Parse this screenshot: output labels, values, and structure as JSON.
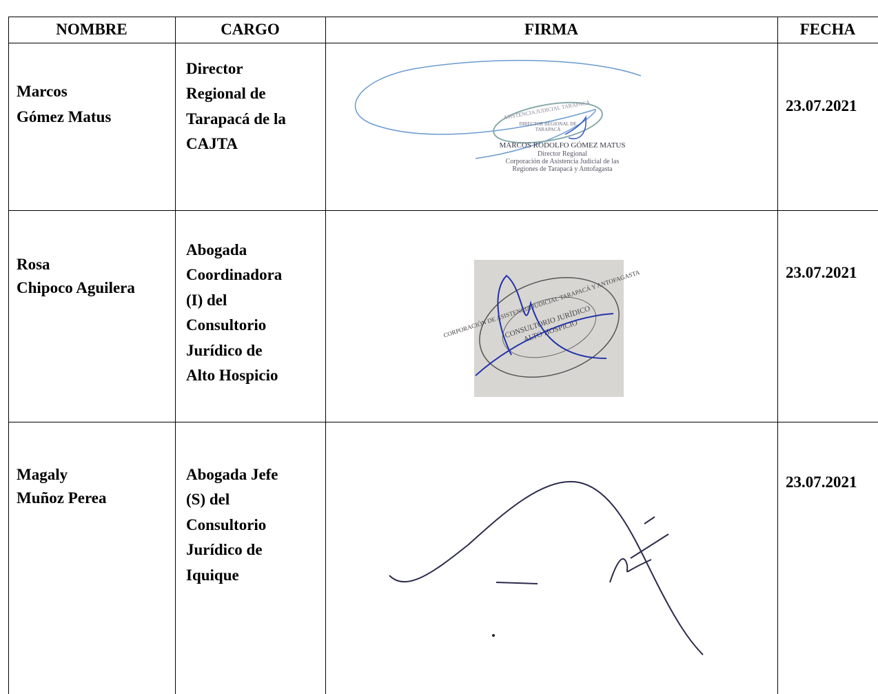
{
  "table": {
    "header": [
      "NOMBRE",
      "CARGO",
      "FIRMA",
      "FECHA"
    ],
    "rows": [
      {
        "nombre": [
          "Marcos",
          "Gómez Matus"
        ],
        "cargo": [
          "Director",
          "Regional de",
          "Tarapacá de la",
          "CAJTA"
        ],
        "fecha": "23.07.2021",
        "firma": {
          "stamp": [
            "ASISTENCIA JUDICIAL TARAPACÁ",
            "DIRECTOR REGIONAL DE",
            "TARAPACÁ"
          ],
          "caption": [
            "MARCOS RODOLFO GÓMEZ MATUS",
            "Director Regional",
            "Corporación de Asistencia Judicial de las",
            "Regiones de Tarapacá y Antofagasta"
          ]
        }
      },
      {
        "nombre": [
          "Rosa",
          "Chipoco Aguilera"
        ],
        "cargo": [
          "Abogada",
          "Coordinadora",
          "(I) del",
          "Consultorio",
          "Jurídico de",
          "Alto Hospicio"
        ],
        "fecha": "23.07.2021",
        "firma": {
          "stamp": [
            "CORPORACIÓN DE ASISTENCIA JUDICIAL TARAPACÁ Y ANTOFAGASTA",
            "CONSULTORIO JURÍDICO",
            "ALTO HOSPICIO"
          ]
        }
      },
      {
        "nombre": [
          "Magaly",
          "Muñoz Perea"
        ],
        "cargo": [
          "Abogada Jefe",
          "(S) del",
          "Consultorio",
          "Jurídico de",
          "Iquique"
        ],
        "fecha": "23.07.2021"
      }
    ]
  }
}
